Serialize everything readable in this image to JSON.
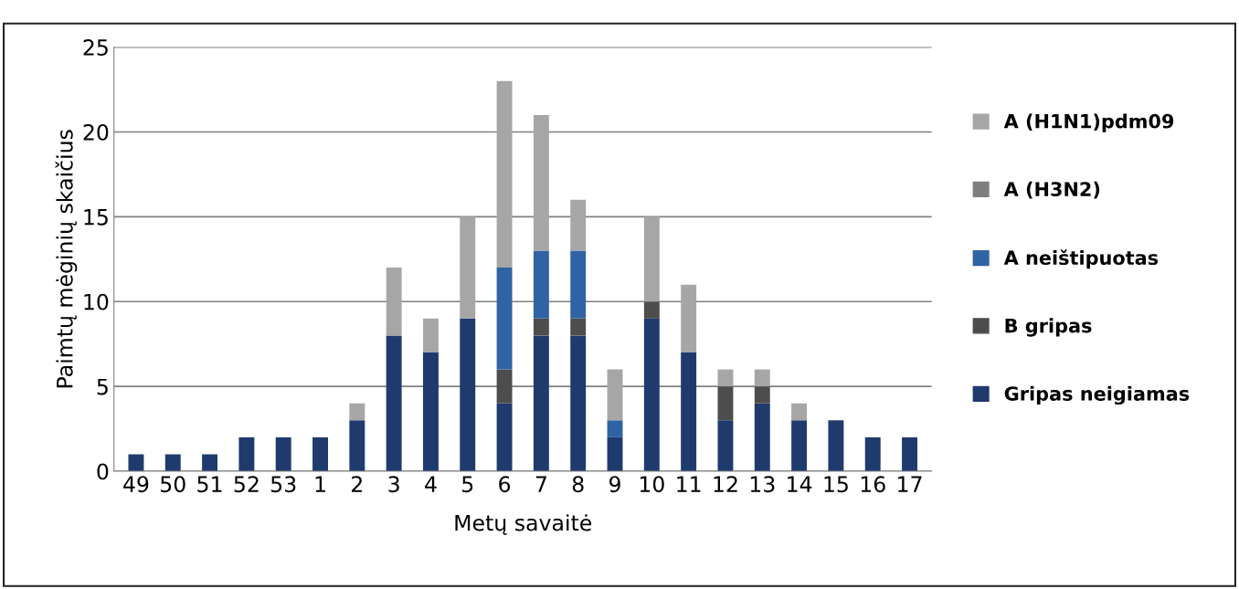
{
  "chart_data": {
    "type": "bar",
    "stacked": true,
    "categories": [
      "49",
      "50",
      "51",
      "52",
      "53",
      "1",
      "2",
      "3",
      "4",
      "5",
      "6",
      "7",
      "8",
      "9",
      "10",
      "11",
      "12",
      "13",
      "14",
      "15",
      "16",
      "17"
    ],
    "series": [
      {
        "name": "Gripas neigiamas",
        "color": "#1f3b6e",
        "values": [
          1,
          1,
          1,
          2,
          2,
          2,
          3,
          8,
          7,
          9,
          4,
          8,
          8,
          2,
          9,
          7,
          3,
          4,
          3,
          3,
          2,
          2
        ]
      },
      {
        "name": "B gripas",
        "color": "#4d4d4d",
        "values": [
          0,
          0,
          0,
          0,
          0,
          0,
          0,
          0,
          0,
          0,
          2,
          1,
          1,
          0,
          1,
          0,
          2,
          1,
          0,
          0,
          0,
          0
        ]
      },
      {
        "name": "A neištipuotas",
        "color": "#2f63a3",
        "values": [
          0,
          0,
          0,
          0,
          0,
          0,
          0,
          0,
          0,
          0,
          6,
          4,
          4,
          1,
          0,
          0,
          0,
          0,
          0,
          0,
          0,
          0
        ]
      },
      {
        "name": "A (H3N2)",
        "color": "#7f7f7f",
        "values": [
          0,
          0,
          0,
          0,
          0,
          0,
          0,
          0,
          0,
          0,
          0,
          0,
          0,
          0,
          0,
          0,
          0,
          0,
          0,
          0,
          0,
          0
        ]
      },
      {
        "name": "A (H1N1)pdm09",
        "color": "#a6a6a6",
        "values": [
          0,
          0,
          0,
          0,
          0,
          0,
          1,
          4,
          2,
          6,
          11,
          8,
          3,
          3,
          5,
          4,
          1,
          1,
          1,
          0,
          0,
          0
        ]
      }
    ],
    "xlabel": "Metų savaitė",
    "ylabel": "Paimtų mėginių skaičius",
    "ylim": [
      0,
      25
    ],
    "yticks": [
      0,
      5,
      10,
      15,
      20,
      25
    ],
    "grid": "y",
    "legend": "right"
  }
}
